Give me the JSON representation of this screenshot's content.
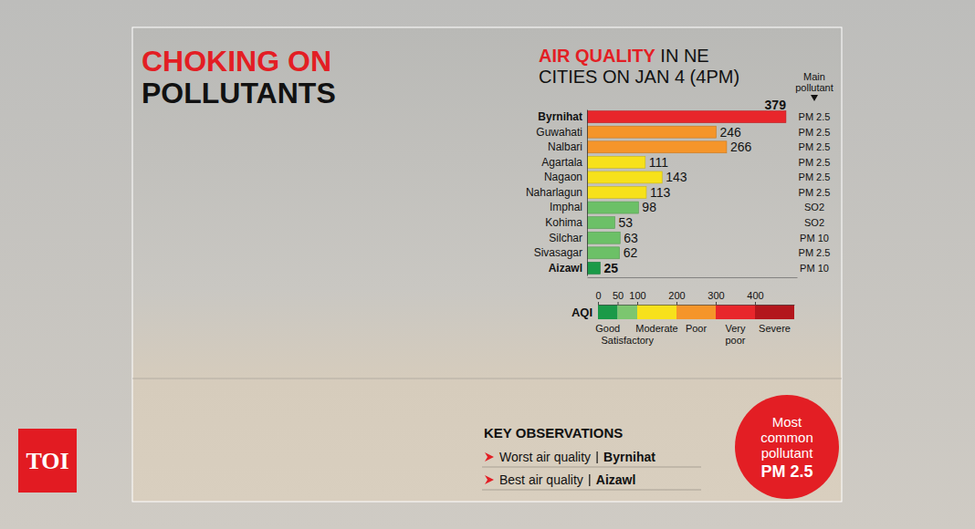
{
  "header": {
    "title": "CHOKING ON POLLUTANTS",
    "logo": "TOI"
  },
  "chart_data": {
    "type": "bar",
    "orientation": "horizontal",
    "title": "AIR QUALITY IN NE CITIES ON JAN 4 (4PM)",
    "categories": [
      "Byrnihat",
      "Guwahati",
      "Nalbari",
      "Agartala",
      "Nagaon",
      "Naharlagun",
      "Imphal",
      "Kohima",
      "Silchar",
      "Sivasagar",
      "Aizawl"
    ],
    "values": [
      379,
      246,
      266,
      111,
      143,
      113,
      98,
      53,
      63,
      62,
      25
    ],
    "colors": [
      "#e8262b",
      "#f5952a",
      "#f5952a",
      "#f7e11b",
      "#f7e11b",
      "#f7e11b",
      "#6cc067",
      "#6cc067",
      "#6cc067",
      "#6cc067",
      "#1a9a48"
    ],
    "data_labels": true,
    "tick_labels": "y",
    "xlim": [
      0,
      400
    ],
    "main_pollutant_label": "Main pollutant",
    "main_pollutant": [
      "PM 2.5",
      "PM 2.5",
      "PM 2.5",
      "PM 2.5",
      "PM 2.5",
      "PM 2.5",
      "SO2",
      "SO2",
      "PM 10",
      "PM 2.5",
      "PM 10"
    ],
    "aqi_scale": {
      "label": "AQI",
      "range": [
        0,
        500
      ],
      "ticks": [
        0,
        50,
        100,
        200,
        300,
        400
      ],
      "bands": [
        {
          "label": "Good",
          "from": 0,
          "to": 50,
          "color": "#1a9a48"
        },
        {
          "label": "Satisfactory",
          "from": 50,
          "to": 100,
          "color": "#7cc66f"
        },
        {
          "label": "Moderate",
          "from": 100,
          "to": 200,
          "color": "#f7e11b"
        },
        {
          "label": "Poor",
          "from": 200,
          "to": 300,
          "color": "#f5952a"
        },
        {
          "label": "Very poor",
          "from": 300,
          "to": 400,
          "color": "#e8262b"
        },
        {
          "label": "Severe",
          "from": 400,
          "to": 500,
          "color": "#b3161c"
        }
      ]
    }
  },
  "key_observations": {
    "title": "KEY OBSERVATIONS",
    "items": [
      {
        "label": "Worst air quality",
        "value": "Byrnihat"
      },
      {
        "label": "Best air quality",
        "value": "Aizawl"
      }
    ]
  },
  "callout": {
    "text": "Most common pollutant",
    "value": "PM 2.5"
  }
}
